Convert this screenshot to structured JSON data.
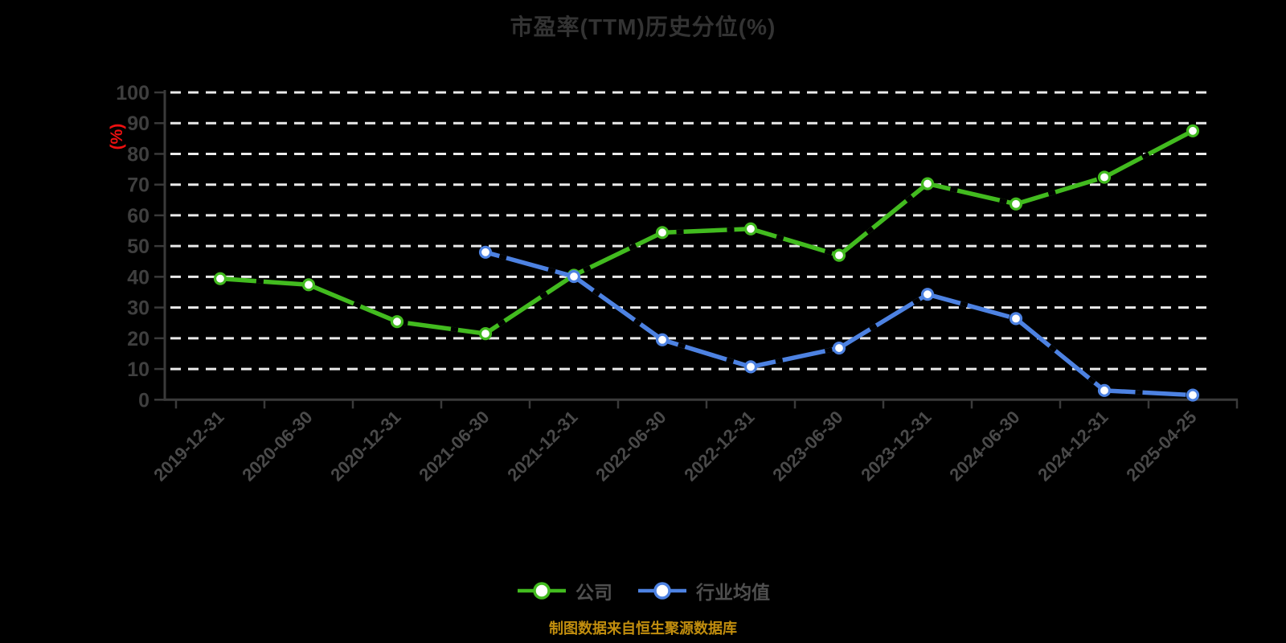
{
  "title": "市盈率(TTM)历史分位(%)",
  "y_axis": {
    "unit_label": "(%)",
    "min": 0,
    "max": 100,
    "tick_step": 10,
    "tick_labels": [
      "0",
      "10",
      "20",
      "30",
      "40",
      "50",
      "60",
      "70",
      "80",
      "90",
      "100"
    ]
  },
  "x_axis": {
    "labels": [
      "2019-12-31",
      "2020-06-30",
      "2020-12-31",
      "2021-06-30",
      "2021-12-31",
      "2022-06-30",
      "2022-12-31",
      "2023-06-30",
      "2023-12-31",
      "2024-06-30",
      "2024-12-31",
      "2025-04-25"
    ]
  },
  "legend": {
    "items": [
      {
        "key": "company",
        "label": "公司",
        "color": "#42bb1f"
      },
      {
        "key": "industry-average",
        "label": "行业均值",
        "color": "#4d82e2"
      }
    ]
  },
  "footer": {
    "source_note": "制图数据来自恒生聚源数据库"
  },
  "colors": {
    "background": "#000000",
    "title_text": "#333333",
    "unit_label_text": "#ee1010",
    "axis_line": "#3a3a3a",
    "y_tick_text": "#3f3f3f",
    "x_label_text": "#4a4a4a",
    "gridline": "#eaeaea",
    "legend_text": "#4f4f4f",
    "footer_text": "#c28e0e",
    "marker_fill": "#ffffff",
    "line_dash_overlay": "#000000"
  },
  "chart_data": {
    "type": "line",
    "title": "市盈率(TTM)历史分位(%)",
    "ylabel": "(%)",
    "ylim": [
      0,
      100
    ],
    "y_tick_step": 10,
    "grid": "horizontal-dashed-white",
    "legend_position": "bottom",
    "categories": [
      "2019-12-31",
      "2020-06-30",
      "2020-12-31",
      "2021-06-30",
      "2021-12-31",
      "2022-06-30",
      "2022-12-31",
      "2023-06-30",
      "2023-12-31",
      "2024-06-30",
      "2024-12-31",
      "2025-04-25"
    ],
    "series": [
      {
        "name": "公司",
        "color": "#42bb1f",
        "values": [
          39.4,
          37.4,
          25.4,
          21.5,
          40.5,
          54.4,
          55.6,
          47.0,
          70.3,
          63.7,
          72.4,
          87.5
        ]
      },
      {
        "name": "行业均值",
        "color": "#4d82e2",
        "values": [
          null,
          null,
          null,
          48.0,
          40.1,
          19.5,
          10.7,
          16.8,
          34.3,
          26.4,
          3.0,
          1.5
        ]
      }
    ]
  }
}
